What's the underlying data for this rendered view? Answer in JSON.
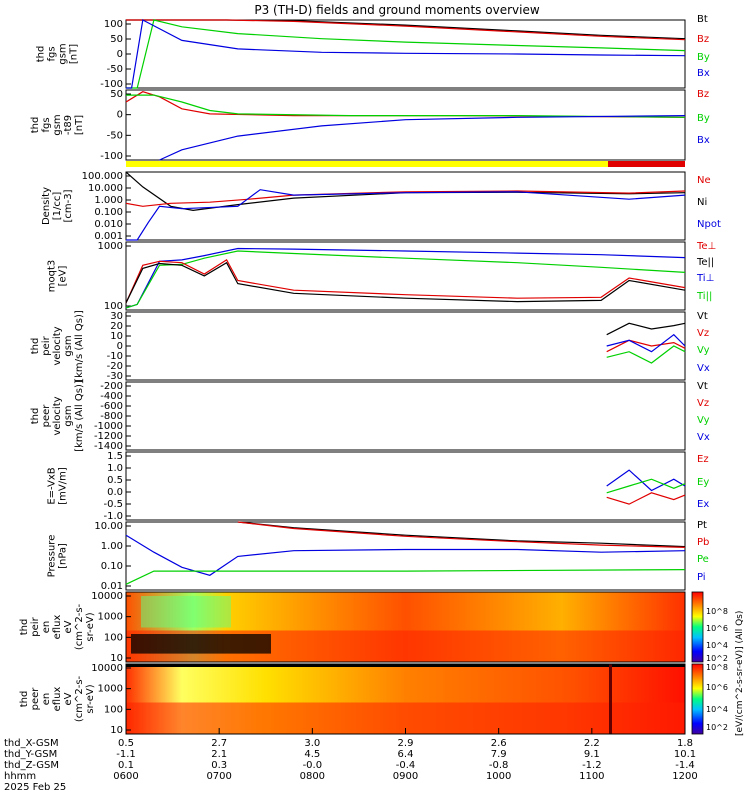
{
  "title": "P3 (TH-D) fields and ground moments overview",
  "colors": {
    "black": "#000000",
    "red": "#e00000",
    "green": "#00d000",
    "blue": "#0000e0",
    "yellow": "#ffff00"
  },
  "chart_data": [
    {
      "type": "line",
      "panel": "fgs-gsm",
      "ylabel_lines": [
        "thd",
        "fgs",
        "gsm",
        "[nT]"
      ],
      "yticks": [
        "100",
        "50",
        "0",
        "-50",
        "-100"
      ],
      "ylim": [
        -100,
        100
      ],
      "legend": [
        {
          "label": "Bt",
          "color": "#000000"
        },
        {
          "label": "Bz",
          "color": "#e00000"
        },
        {
          "label": "By",
          "color": "#00d000"
        },
        {
          "label": "Bx",
          "color": "#0000e0"
        }
      ],
      "series": [
        {
          "color": "#000000",
          "x": [
            0,
            0.18,
            0.3,
            0.5,
            0.7,
            0.85,
            1.0
          ],
          "y": [
            100,
            100,
            98,
            85,
            68,
            55,
            45
          ]
        },
        {
          "color": "#e00000",
          "x": [
            0,
            0.18,
            0.3,
            0.5,
            0.7,
            0.85,
            1.0
          ],
          "y": [
            100,
            100,
            96,
            82,
            65,
            52,
            42
          ]
        },
        {
          "color": "#00d000",
          "x": [
            0,
            0.02,
            0.05,
            0.1,
            0.2,
            0.35,
            0.5,
            0.7,
            0.85,
            1.0
          ],
          "y": [
            -100,
            -100,
            100,
            80,
            60,
            45,
            35,
            25,
            18,
            10
          ]
        },
        {
          "color": "#0000e0",
          "x": [
            0,
            0.01,
            0.03,
            0.1,
            0.2,
            0.35,
            0.5,
            0.7,
            0.85,
            1.0
          ],
          "y": [
            -100,
            -100,
            100,
            40,
            15,
            5,
            2,
            0,
            -3,
            -5
          ]
        }
      ]
    },
    {
      "type": "line",
      "panel": "fgs-gsm-t89",
      "ylabel_lines": [
        "thd",
        "fgs",
        "gsm",
        "-t89",
        "[nT]"
      ],
      "yticks": [
        "50",
        "0",
        "-50",
        "-100"
      ],
      "ylim": [
        -130,
        75
      ],
      "legend": [
        {
          "label": "Bz",
          "color": "#e00000"
        },
        {
          "label": "By",
          "color": "#00d000"
        },
        {
          "label": "Bx",
          "color": "#0000e0"
        }
      ],
      "series": [
        {
          "color": "#e00000",
          "x": [
            0,
            0.03,
            0.06,
            0.1,
            0.15,
            0.3,
            0.6,
            1.0
          ],
          "y": [
            40,
            70,
            55,
            20,
            5,
            0,
            0,
            -5
          ]
        },
        {
          "color": "#00d000",
          "x": [
            0,
            0.05,
            0.1,
            0.15,
            0.2,
            0.4,
            0.7,
            1.0
          ],
          "y": [
            60,
            60,
            40,
            15,
            5,
            0,
            0,
            -5
          ]
        },
        {
          "color": "#0000e0",
          "x": [
            0.06,
            0.1,
            0.2,
            0.35,
            0.5,
            0.7,
            1.0
          ],
          "y": [
            -130,
            -100,
            -60,
            -30,
            -12,
            -5,
            0
          ]
        }
      ]
    },
    {
      "type": "line",
      "panel": "density",
      "ylabel_lines": [
        "Density",
        "[1/cc]",
        "[cm-3]"
      ],
      "yticks": [
        "100.000",
        "10.000",
        "1.000",
        "0.100",
        "0.010",
        "0.001"
      ],
      "scale": "log",
      "ylim": [
        0.001,
        100
      ],
      "legend": [
        {
          "label": "Ne",
          "color": "#e00000"
        },
        {
          "label": "Ni",
          "color": "#000000"
        },
        {
          "label": "Npot",
          "color": "#0000e0"
        }
      ],
      "series": [
        {
          "color": "#000000",
          "x": [
            0,
            0.03,
            0.08,
            0.12,
            0.2,
            0.3,
            0.5,
            0.7,
            0.9,
            1.0
          ],
          "y": [
            100,
            8,
            0.3,
            0.15,
            0.4,
            1.2,
            3,
            3.2,
            2.5,
            3
          ]
        },
        {
          "color": "#e00000",
          "x": [
            0,
            0.03,
            0.08,
            0.15,
            0.22,
            0.3,
            0.5,
            0.7,
            0.9,
            1.0
          ],
          "y": [
            0.5,
            0.3,
            0.5,
            0.6,
            1.0,
            2.0,
            3.5,
            4.0,
            2.8,
            4.0
          ]
        },
        {
          "color": "#0000e0",
          "x": [
            0,
            0.02,
            0.04,
            0.06,
            0.1,
            0.2,
            0.24,
            0.3,
            0.5,
            0.7,
            0.9,
            1.0
          ],
          "y": [
            0.001,
            0.001,
            0.02,
            0.3,
            0.2,
            0.3,
            5,
            2,
            3,
            3.5,
            1,
            2
          ]
        }
      ]
    },
    {
      "type": "line",
      "panel": "moments-temp",
      "ylabel_lines": [
        "moqt3",
        "[eV]"
      ],
      "yticks": [
        "1000",
        "100"
      ],
      "scale": "log",
      "ylim": [
        60,
        8000
      ],
      "legend": [
        {
          "label": "Te⊥",
          "color": "#e00000"
        },
        {
          "label": "Te||",
          "color": "#000000"
        },
        {
          "label": "Ti⊥",
          "color": "#0000e0"
        },
        {
          "label": "Ti||",
          "color": "#00d000"
        }
      ],
      "series": [
        {
          "color": "#0000e0",
          "x": [
            0,
            0.02,
            0.06,
            0.1,
            0.14,
            0.2,
            0.3,
            0.5,
            0.7,
            0.85,
            1.0
          ],
          "y": [
            70,
            90,
            2000,
            2200,
            3000,
            5000,
            4800,
            4200,
            3600,
            3200,
            2600
          ]
        },
        {
          "color": "#00d000",
          "x": [
            0,
            0.02,
            0.06,
            0.1,
            0.14,
            0.2,
            0.3,
            0.5,
            0.7,
            0.85,
            1.0
          ],
          "y": [
            70,
            90,
            1500,
            1600,
            2500,
            4200,
            3500,
            2500,
            1800,
            1300,
            900
          ]
        },
        {
          "color": "#e00000",
          "x": [
            0,
            0.03,
            0.06,
            0.1,
            0.14,
            0.18,
            0.2,
            0.3,
            0.5,
            0.7,
            0.85,
            0.9,
            1.0
          ],
          "y": [
            100,
            1500,
            2000,
            1800,
            800,
            2200,
            500,
            250,
            180,
            140,
            150,
            600,
            300
          ]
        },
        {
          "color": "#000000",
          "x": [
            0,
            0.03,
            0.06,
            0.1,
            0.14,
            0.18,
            0.2,
            0.3,
            0.5,
            0.7,
            0.85,
            0.9,
            1.0
          ],
          "y": [
            100,
            1200,
            1700,
            1500,
            700,
            1800,
            400,
            200,
            140,
            110,
            120,
            500,
            250
          ]
        }
      ]
    },
    {
      "type": "line",
      "panel": "peir-velocity",
      "ylabel_lines": [
        "thd",
        "peir",
        "velocity",
        "gsm",
        "[km/s (All Qs)]"
      ],
      "yticks": [
        "30",
        "20",
        "10",
        "0",
        "-10",
        "-20",
        "-30"
      ],
      "ylim": [
        -30,
        30
      ],
      "legend": [
        {
          "label": "Vt",
          "color": "#000000"
        },
        {
          "label": "Vz",
          "color": "#e00000"
        },
        {
          "label": "Vy",
          "color": "#00d000"
        },
        {
          "label": "Vx",
          "color": "#0000e0"
        }
      ],
      "series": [
        {
          "color": "#000000",
          "x": [
            0.86,
            0.9,
            0.94,
            0.98,
            1.0
          ],
          "y": [
            10,
            20,
            15,
            18,
            20
          ]
        },
        {
          "color": "#e00000",
          "x": [
            0.86,
            0.9,
            0.94,
            0.98,
            1.0
          ],
          "y": [
            -5,
            5,
            0,
            3,
            -2
          ]
        },
        {
          "color": "#00d000",
          "x": [
            0.86,
            0.9,
            0.94,
            0.98,
            1.0
          ],
          "y": [
            -10,
            -5,
            -15,
            0,
            -5
          ]
        },
        {
          "color": "#0000e0",
          "x": [
            0.86,
            0.9,
            0.94,
            0.98,
            1.0
          ],
          "y": [
            0,
            5,
            -5,
            10,
            0
          ]
        }
      ]
    },
    {
      "type": "line",
      "panel": "peer-velocity",
      "ylabel_lines": [
        "thd",
        "peer",
        "velocity",
        "gsm",
        "[km/s (All Qs)]"
      ],
      "yticks": [
        "-200",
        "-400",
        "-600",
        "-800",
        "-1000",
        "-1200",
        "-1400"
      ],
      "ylim": [
        -1500,
        -100
      ],
      "legend": [
        {
          "label": "Vt",
          "color": "#000000"
        },
        {
          "label": "Vz",
          "color": "#e00000"
        },
        {
          "label": "Vy",
          "color": "#00d000"
        },
        {
          "label": "Vx",
          "color": "#0000e0"
        }
      ],
      "series": []
    },
    {
      "type": "line",
      "panel": "e-field",
      "ylabel_lines": [
        "E=-VxB",
        "[mV/m]"
      ],
      "yticks": [
        "1.5",
        "1.0",
        "0.5",
        "0.0",
        "-0.5",
        "-1.0"
      ],
      "ylim": [
        -1.0,
        2.0
      ],
      "legend": [
        {
          "label": "Ez",
          "color": "#e00000"
        },
        {
          "label": "Ey",
          "color": "#00d000"
        },
        {
          "label": "Ex",
          "color": "#0000e0"
        }
      ],
      "series": [
        {
          "color": "#0000e0",
          "x": [
            0.86,
            0.9,
            0.94,
            0.98,
            1.0
          ],
          "y": [
            0.5,
            1.2,
            0.3,
            0.8,
            0.5
          ]
        },
        {
          "color": "#00d000",
          "x": [
            0.86,
            0.9,
            0.94,
            0.98,
            1.0
          ],
          "y": [
            0.2,
            0.5,
            0.8,
            0.4,
            0.6
          ]
        },
        {
          "color": "#e00000",
          "x": [
            0.86,
            0.9,
            0.94,
            0.98,
            1.0
          ],
          "y": [
            0.0,
            -0.3,
            0.2,
            -0.1,
            0.1
          ]
        }
      ]
    },
    {
      "type": "line",
      "panel": "pressure",
      "ylabel_lines": [
        "Pressure",
        "[nPa]"
      ],
      "yticks": [
        "10.00",
        "1.00",
        "0.10",
        "0.01"
      ],
      "scale": "log",
      "ylim": [
        0.005,
        20
      ],
      "legend": [
        {
          "label": "Pt",
          "color": "#000000"
        },
        {
          "label": "Pb",
          "color": "#e00000"
        },
        {
          "label": "Pe",
          "color": "#00d000"
        },
        {
          "label": "Pi",
          "color": "#0000e0"
        }
      ],
      "series": [
        {
          "color": "#000000",
          "x": [
            0.2,
            0.3,
            0.5,
            0.7,
            0.85,
            1.0
          ],
          "y": [
            20,
            10,
            4,
            2.0,
            1.5,
            1.0
          ]
        },
        {
          "color": "#e00000",
          "x": [
            0.2,
            0.3,
            0.5,
            0.7,
            0.85,
            1.0
          ],
          "y": [
            20,
            9,
            3.5,
            1.8,
            1.2,
            0.9
          ]
        },
        {
          "color": "#0000e0",
          "x": [
            0,
            0.05,
            0.1,
            0.15,
            0.2,
            0.3,
            0.5,
            0.7,
            0.85,
            1.0
          ],
          "y": [
            4,
            0.5,
            0.08,
            0.03,
            0.3,
            0.6,
            0.7,
            0.7,
            0.5,
            0.6
          ]
        },
        {
          "color": "#00d000",
          "x": [
            0,
            0.05,
            0.1,
            0.2,
            0.5,
            1.0
          ],
          "y": [
            0.01,
            0.05,
            0.05,
            0.05,
            0.05,
            0.06
          ]
        }
      ]
    },
    {
      "type": "heatmap",
      "panel": "peir-en-eflux",
      "ylabel_lines": [
        "thd",
        "peir",
        "en",
        "eflux",
        "eV",
        "(cm^2-s-",
        "sr-eV)"
      ],
      "yticks": [
        "10000",
        "1000",
        "100",
        "10"
      ]
    },
    {
      "type": "heatmap",
      "panel": "peer-en-eflux",
      "ylabel_lines": [
        "thd",
        "peer",
        "en",
        "eflux",
        "eV",
        "(cm^2-s-",
        "sr-eV)"
      ],
      "yticks": [
        "10000",
        "1000",
        "100",
        "10"
      ]
    }
  ],
  "colorbar": {
    "label": "[eV/(cm^2-s-sr-eV)] (All Qs)",
    "ticks_top": [
      "10^8",
      "10^6",
      "10^4",
      "10^2"
    ],
    "ticks_bottom": [
      "10^8",
      "10^6",
      "10^4",
      "10^2"
    ]
  },
  "x_axis": {
    "row_labels": [
      "thd_X-GSM",
      "thd_Y-GSM",
      "thd_Z-GSM",
      "hhmm",
      "2025 Feb 25"
    ],
    "columns": [
      {
        "x": "0.5",
        "y": "-1.1",
        "z": "0.1",
        "hhmm": "0600"
      },
      {
        "x": "2.7",
        "y": "2.1",
        "z": "0.3",
        "hhmm": "0700"
      },
      {
        "x": "3.0",
        "y": "4.5",
        "z": "-0.0",
        "hhmm": "0800"
      },
      {
        "x": "2.9",
        "y": "6.4",
        "z": "-0.4",
        "hhmm": "0900"
      },
      {
        "x": "2.6",
        "y": "7.9",
        "z": "-0.8",
        "hhmm": "1000"
      },
      {
        "x": "2.2",
        "y": "9.1",
        "z": "-1.2",
        "hhmm": "1100"
      },
      {
        "x": "1.8",
        "y": "10.1",
        "z": "-1.4",
        "hhmm": "1200"
      }
    ]
  }
}
